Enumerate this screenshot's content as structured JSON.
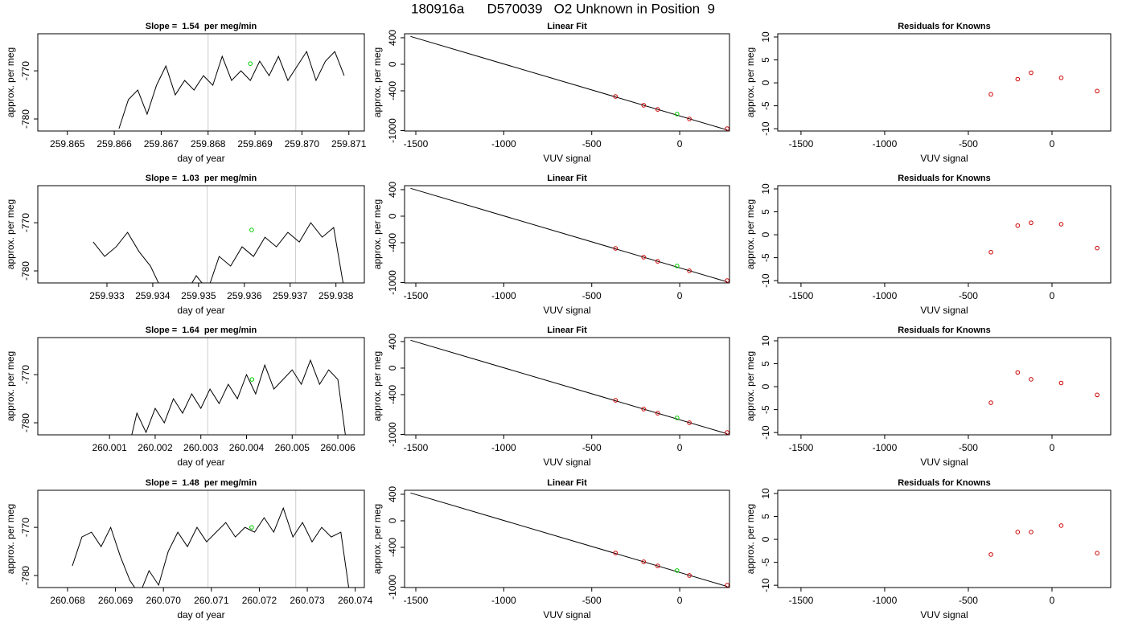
{
  "title": "180916a      D570039   O2 Unknown in Position  9",
  "chart_data": [
    {
      "type": "line",
      "title": "Slope =  1.54  per meg/min",
      "x_label": "day of year",
      "y_label": "approx. per meg",
      "xlim": [
        259.86437,
        259.87133
      ],
      "ylim": [
        -782.5,
        -762.3
      ],
      "xticks": [
        259.865,
        259.866,
        259.867,
        259.868,
        259.869,
        {
          "value": 259.87,
          "label": "259.870"
        },
        259.871
      ],
      "yticks": [
        -780,
        -770
      ],
      "vlines": [
        259.868,
        259.86987
      ],
      "vline_color": "#cccccc",
      "series": [
        {
          "mode": "line",
          "color": "#000000",
          "x": [
            259.8661,
            259.8663,
            259.8665,
            259.8667,
            259.8669,
            259.8671,
            259.8673,
            259.8675,
            259.8677,
            259.8679,
            259.8681,
            259.8683,
            259.8685,
            259.8687,
            259.8689,
            259.8691,
            259.8693,
            259.8695,
            259.8697,
            259.8699,
            259.8701,
            259.8703,
            259.8705,
            259.8707,
            259.8709
          ],
          "values": [
            -782,
            -776,
            -774,
            -779,
            -773,
            -769,
            -775,
            -772,
            -774,
            -771,
            -773,
            -767,
            -772,
            -770,
            -772,
            -768,
            -771,
            -767,
            -772,
            -769,
            -766,
            -772,
            -768,
            -766,
            -771
          ]
        },
        {
          "mode": "points",
          "color": "#00cc00",
          "x": [
            259.8689
          ],
          "values": [
            -768.5
          ]
        }
      ]
    },
    {
      "type": "line",
      "title": "Linear Fit",
      "x_label": "VUV signal",
      "y_label": "approx. per meg",
      "xlim": [
        -1564,
        283
      ],
      "ylim": [
        -1006,
        460
      ],
      "xticks": [
        -1500,
        -1000,
        -500,
        0
      ],
      "yticks": [
        -1000,
        -400,
        0,
        400
      ],
      "series": [
        {
          "mode": "line",
          "color": "#000000",
          "x": [
            -1530,
            270
          ],
          "values": [
            420,
            -990
          ]
        },
        {
          "mode": "points",
          "color": "#cc0000",
          "x": [
            -365,
            -205,
            -125,
            55,
            270
          ],
          "values": [
            -485,
            -618,
            -680,
            -824,
            -970
          ]
        },
        {
          "mode": "points",
          "color": "#00cc00",
          "x": [
            -15
          ],
          "values": [
            -750
          ]
        }
      ]
    },
    {
      "type": "scatter",
      "title": "Residuals for Knowns",
      "x_label": "VUV signal",
      "y_label": "approx. per meg",
      "xlim": [
        -1639,
        351
      ],
      "ylim": [
        -10.5,
        10.7
      ],
      "xticks": [
        -1500,
        -1000,
        -500,
        0
      ],
      "yticks": [
        -10,
        -5,
        0,
        5,
        10
      ],
      "series": [
        {
          "mode": "points",
          "color": "#cc0000",
          "x": [
            -365,
            -205,
            -125,
            55,
            270
          ],
          "values": [
            -2.5,
            0.8,
            2.2,
            1.1,
            -1.8
          ]
        }
      ]
    },
    {
      "type": "line",
      "title": "Slope =  1.03  per meg/min",
      "x_label": "day of year",
      "y_label": "approx. per meg",
      "xlim": [
        259.93149,
        259.93862
      ],
      "ylim": [
        -782.5,
        -762.3
      ],
      "xticks": [
        259.933,
        259.934,
        259.935,
        259.936,
        259.937,
        259.938
      ],
      "yticks": [
        -780,
        -770
      ],
      "vlines": [
        259.93519,
        259.93712
      ],
      "vline_color": "#cccccc",
      "series": [
        {
          "mode": "line",
          "color": "#000000",
          "x": [
            259.9327,
            259.93295,
            259.9332,
            259.93345,
            259.9337,
            259.93395,
            259.9342,
            259.93445,
            259.9347,
            259.93495,
            259.9352,
            259.93545,
            259.9357,
            259.93595,
            259.9362,
            259.93645,
            259.9367,
            259.93695,
            259.9372,
            259.93745,
            259.9377,
            259.93795,
            259.9382
          ],
          "values": [
            -774,
            -777,
            -775,
            -772,
            -776,
            -779,
            -784,
            -783,
            -785,
            -781,
            -784,
            -777,
            -779,
            -775,
            -777,
            -773,
            -775,
            -772,
            -774,
            -770,
            -773,
            -771,
            -785
          ]
        },
        {
          "mode": "points",
          "color": "#00cc00",
          "x": [
            259.93616
          ],
          "values": [
            -771.5
          ]
        }
      ]
    },
    {
      "type": "line",
      "title": "Linear Fit",
      "x_label": "VUV signal",
      "y_label": "approx. per meg",
      "xlim": [
        -1564,
        283
      ],
      "ylim": [
        -1006,
        460
      ],
      "xticks": [
        -1500,
        -1000,
        -500,
        0
      ],
      "yticks": [
        -1000,
        -400,
        0,
        400
      ],
      "series": [
        {
          "mode": "line",
          "color": "#000000",
          "x": [
            -1530,
            270
          ],
          "values": [
            420,
            -990
          ]
        },
        {
          "mode": "points",
          "color": "#cc0000",
          "x": [
            -365,
            -205,
            -125,
            55,
            270
          ],
          "values": [
            -485,
            -618,
            -680,
            -824,
            -970
          ]
        },
        {
          "mode": "points",
          "color": "#00cc00",
          "x": [
            -15
          ],
          "values": [
            -750
          ]
        }
      ]
    },
    {
      "type": "scatter",
      "title": "Residuals for Knowns",
      "x_label": "VUV signal",
      "y_label": "approx. per meg",
      "xlim": [
        -1639,
        351
      ],
      "ylim": [
        -10.5,
        10.7
      ],
      "xticks": [
        -1500,
        -1000,
        -500,
        0
      ],
      "yticks": [
        -10,
        -5,
        0,
        5,
        10
      ],
      "series": [
        {
          "mode": "points",
          "color": "#cc0000",
          "x": [
            -365,
            -205,
            -125,
            55,
            270
          ],
          "values": [
            -3.8,
            2.0,
            2.6,
            2.3,
            -2.9
          ]
        }
      ]
    },
    {
      "type": "line",
      "title": "Slope =  1.64  per meg/min",
      "x_label": "day of year",
      "y_label": "approx. per meg",
      "xlim": [
        259.99943,
        260.00658
      ],
      "ylim": [
        -782.5,
        -762.3
      ],
      "xticks": [
        260.001,
        260.002,
        260.003,
        260.004,
        260.005,
        260.006
      ],
      "yticks": [
        -780,
        -770
      ],
      "vlines": [
        260.00315,
        260.00508
      ],
      "vline_color": "#cccccc",
      "series": [
        {
          "mode": "line",
          "color": "#000000",
          "x": [
            260.0014,
            260.0016,
            260.0018,
            260.002,
            260.0022,
            260.0024,
            260.0026,
            260.0028,
            260.003,
            260.0032,
            260.0034,
            260.0036,
            260.0038,
            260.004,
            260.0042,
            260.0044,
            260.0046,
            260.0048,
            260.005,
            260.0052,
            260.0054,
            260.0056,
            260.0058,
            260.006,
            260.0062
          ],
          "values": [
            -786,
            -778,
            -782,
            -777,
            -780,
            -775,
            -778,
            -774,
            -777,
            -773,
            -776,
            -772,
            -775,
            -770,
            -774,
            -768,
            -773,
            -771,
            -769,
            -772,
            -767,
            -772,
            -769,
            -771,
            -785
          ]
        },
        {
          "mode": "points",
          "color": "#00cc00",
          "x": [
            260.00412
          ],
          "values": [
            -771
          ]
        }
      ]
    },
    {
      "type": "line",
      "title": "Linear Fit",
      "x_label": "VUV signal",
      "y_label": "approx. per meg",
      "xlim": [
        -1564,
        283
      ],
      "ylim": [
        -1006,
        460
      ],
      "xticks": [
        -1500,
        -1000,
        -500,
        0
      ],
      "yticks": [
        -1000,
        -400,
        0,
        400
      ],
      "series": [
        {
          "mode": "line",
          "color": "#000000",
          "x": [
            -1530,
            270
          ],
          "values": [
            420,
            -990
          ]
        },
        {
          "mode": "points",
          "color": "#cc0000",
          "x": [
            -365,
            -205,
            -125,
            55,
            270
          ],
          "values": [
            -485,
            -618,
            -680,
            -824,
            -970
          ]
        },
        {
          "mode": "points",
          "color": "#00cc00",
          "x": [
            -15
          ],
          "values": [
            -750
          ]
        }
      ]
    },
    {
      "type": "scatter",
      "title": "Residuals for Knowns",
      "x_label": "VUV signal",
      "y_label": "approx. per meg",
      "xlim": [
        -1639,
        351
      ],
      "ylim": [
        -10.5,
        10.7
      ],
      "xticks": [
        -1500,
        -1000,
        -500,
        0
      ],
      "yticks": [
        -10,
        -5,
        0,
        5,
        10
      ],
      "series": [
        {
          "mode": "points",
          "color": "#cc0000",
          "x": [
            -365,
            -205,
            -125,
            55,
            270
          ],
          "values": [
            -3.5,
            3.1,
            1.6,
            0.8,
            -1.8
          ]
        }
      ]
    },
    {
      "type": "line",
      "title": "Slope =  1.48  per meg/min",
      "x_label": "day of year",
      "y_label": "approx. per meg",
      "xlim": [
        260.06738,
        260.07419
      ],
      "ylim": [
        -782.5,
        -762.3
      ],
      "xticks": [
        260.068,
        260.069,
        {
          "value": 260.07,
          "label": "260.070"
        },
        260.071,
        260.072,
        260.073,
        260.074
      ],
      "yticks": [
        -780,
        -770
      ],
      "vlines": [
        260.07093,
        260.07276
      ],
      "vline_color": "#cccccc",
      "series": [
        {
          "mode": "line",
          "color": "#000000",
          "x": [
            260.0681,
            260.0683,
            260.0685,
            260.0687,
            260.0689,
            260.0691,
            260.0693,
            260.0695,
            260.0697,
            260.0699,
            260.0701,
            260.0703,
            260.0705,
            260.0707,
            260.0709,
            260.0711,
            260.0713,
            260.0715,
            260.0717,
            260.0719,
            260.0721,
            260.0723,
            260.0725,
            260.0727,
            260.0729,
            260.0731,
            260.0733,
            260.0735,
            260.0737,
            260.0739
          ],
          "values": [
            -778,
            -772,
            -771,
            -774,
            -770,
            -776,
            -781,
            -784,
            -779,
            -782,
            -775,
            -771,
            -774,
            -770,
            -773,
            -771,
            -769,
            -772,
            -770,
            -771,
            -768,
            -771,
            -766,
            -772,
            -769,
            -773,
            -770,
            -772,
            -771,
            -785
          ]
        },
        {
          "mode": "points",
          "color": "#00cc00",
          "x": [
            260.07184
          ],
          "values": [
            -770
          ]
        }
      ]
    },
    {
      "type": "line",
      "title": "Linear Fit",
      "x_label": "VUV signal",
      "y_label": "approx. per meg",
      "xlim": [
        -1564,
        283
      ],
      "ylim": [
        -1006,
        460
      ],
      "xticks": [
        -1500,
        -1000,
        -500,
        0
      ],
      "yticks": [
        -1000,
        -400,
        0,
        400
      ],
      "series": [
        {
          "mode": "line",
          "color": "#000000",
          "x": [
            -1530,
            270
          ],
          "values": [
            420,
            -990
          ]
        },
        {
          "mode": "points",
          "color": "#cc0000",
          "x": [
            -365,
            -205,
            -125,
            55,
            270
          ],
          "values": [
            -485,
            -618,
            -680,
            -824,
            -970
          ]
        },
        {
          "mode": "points",
          "color": "#00cc00",
          "x": [
            -15
          ],
          "values": [
            -750
          ]
        }
      ]
    },
    {
      "type": "scatter",
      "title": "Residuals for Knowns",
      "x_label": "VUV signal",
      "y_label": "approx. per meg",
      "xlim": [
        -1639,
        351
      ],
      "ylim": [
        -10.5,
        10.7
      ],
      "xticks": [
        -1500,
        -1000,
        -500,
        0
      ],
      "yticks": [
        -10,
        -5,
        0,
        5,
        10
      ],
      "series": [
        {
          "mode": "points",
          "color": "#cc0000",
          "x": [
            -365,
            -205,
            -125,
            55,
            270
          ],
          "values": [
            -3.3,
            1.6,
            1.6,
            3.0,
            -3.0
          ]
        }
      ]
    }
  ]
}
